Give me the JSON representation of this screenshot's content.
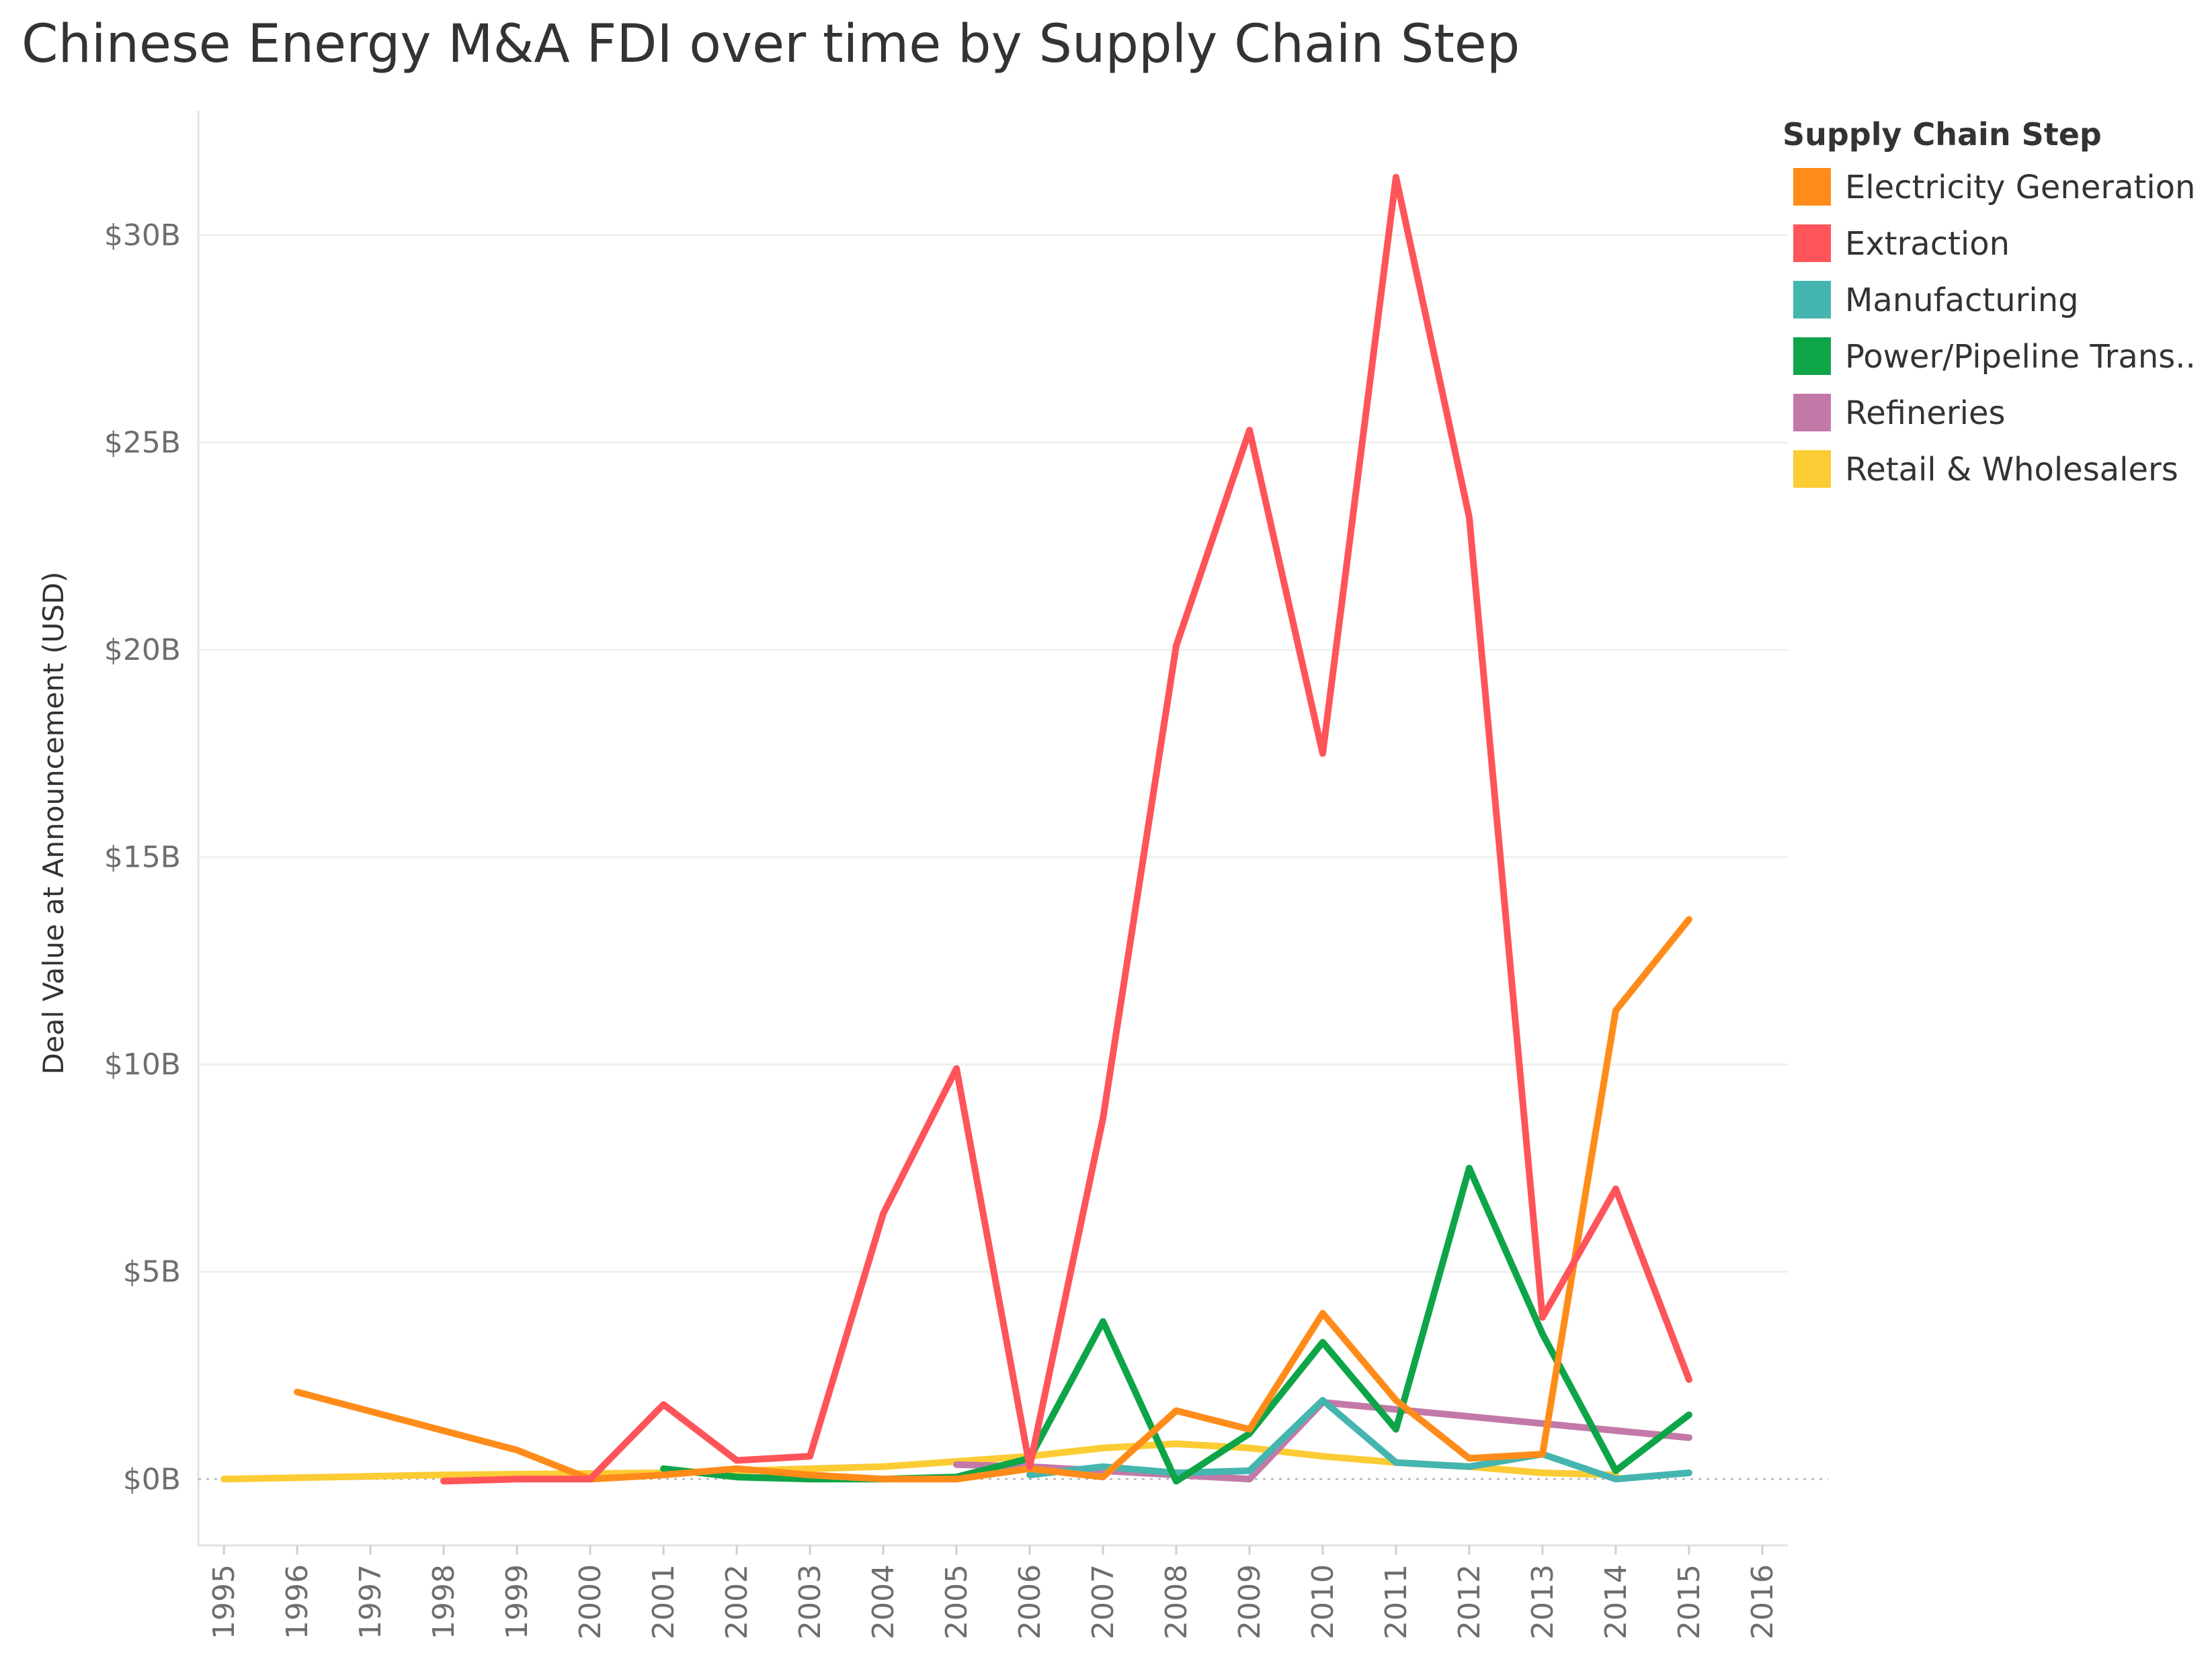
{
  "chart_data": {
    "type": "line",
    "title": "Chinese Energy M&A FDI over time by Supply Chain Step",
    "xlabel": "",
    "ylabel": "Deal Value at Announcement (USD)",
    "x": [
      1995,
      1996,
      1997,
      1998,
      1999,
      2000,
      2001,
      2002,
      2003,
      2004,
      2005,
      2006,
      2007,
      2008,
      2009,
      2010,
      2011,
      2012,
      2013,
      2014,
      2015,
      2016
    ],
    "x_tick_labels": [
      "1995",
      "1996",
      "1997",
      "1998",
      "1999",
      "2000",
      "2001",
      "2002",
      "2003",
      "2004",
      "2005",
      "2006",
      "2007",
      "2008",
      "2009",
      "2010",
      "2011",
      "2012",
      "2013",
      "2014",
      "2015",
      "2016"
    ],
    "ylim": [
      -1.6,
      33
    ],
    "y_ticks": [
      0,
      5,
      10,
      15,
      20,
      25,
      30
    ],
    "y_tick_labels": [
      "$0B",
      "$5B",
      "$10B",
      "$15B",
      "$20B",
      "$25B",
      "$30B"
    ],
    "grid": true,
    "legend": {
      "title": "Supply Chain Step",
      "position": "top-right"
    },
    "series": [
      {
        "name": "Electricity Generation",
        "color": "#ff8c1a",
        "points": [
          [
            1996,
            2.1
          ],
          [
            1999,
            0.7
          ],
          [
            2000,
            0.0
          ],
          [
            2001,
            0.1
          ],
          [
            2002,
            0.25
          ],
          [
            2003,
            0.1
          ],
          [
            2004,
            0.0
          ],
          [
            2005,
            0.0
          ],
          [
            2006,
            0.25
          ],
          [
            2007,
            0.05
          ],
          [
            2008,
            1.65
          ],
          [
            2009,
            1.2
          ],
          [
            2010,
            4.0
          ],
          [
            2011,
            1.9
          ],
          [
            2012,
            0.5
          ],
          [
            2013,
            0.6
          ],
          [
            2014,
            11.3
          ],
          [
            2015,
            13.5
          ]
        ]
      },
      {
        "name": "Extraction",
        "color": "#ff5459",
        "points": [
          [
            1998,
            -0.05
          ],
          [
            1999,
            0.0
          ],
          [
            2000,
            0.0
          ],
          [
            2001,
            1.8
          ],
          [
            2002,
            0.45
          ],
          [
            2003,
            0.55
          ],
          [
            2004,
            6.4
          ],
          [
            2005,
            9.9
          ],
          [
            2006,
            0.3
          ],
          [
            2007,
            8.7
          ],
          [
            2008,
            20.1
          ],
          [
            2009,
            25.3
          ],
          [
            2010,
            17.5
          ],
          [
            2011,
            31.4
          ],
          [
            2012,
            23.2
          ],
          [
            2013,
            3.9
          ],
          [
            2014,
            7.0
          ],
          [
            2015,
            2.4
          ]
        ]
      },
      {
        "name": "Manufacturing",
        "color": "#45b5b0",
        "points": [
          [
            2006,
            0.1
          ],
          [
            2007,
            0.3
          ],
          [
            2008,
            0.15
          ],
          [
            2009,
            0.2
          ],
          [
            2010,
            1.9
          ],
          [
            2011,
            0.4
          ],
          [
            2012,
            0.3
          ],
          [
            2013,
            0.6
          ],
          [
            2014,
            0.0
          ],
          [
            2015,
            0.15
          ]
        ]
      },
      {
        "name": "Power/Pipeline Trans..",
        "color": "#0ea548",
        "points": [
          [
            2001,
            0.25
          ],
          [
            2002,
            0.05
          ],
          [
            2003,
            0.0
          ],
          [
            2004,
            0.0
          ],
          [
            2005,
            0.05
          ],
          [
            2006,
            0.5
          ],
          [
            2007,
            3.8
          ],
          [
            2008,
            -0.05
          ],
          [
            2009,
            1.1
          ],
          [
            2010,
            3.3
          ],
          [
            2011,
            1.2
          ],
          [
            2012,
            7.5
          ],
          [
            2013,
            3.5
          ],
          [
            2014,
            0.2
          ],
          [
            2015,
            1.55
          ]
        ]
      },
      {
        "name": "Refineries",
        "color": "#c379a8",
        "points": [
          [
            2005,
            0.35
          ],
          [
            2006,
            0.3
          ],
          [
            2007,
            0.2
          ],
          [
            2008,
            0.1
          ],
          [
            2009,
            0.0
          ],
          [
            2010,
            1.85
          ],
          [
            2015,
            1.0
          ]
        ]
      },
      {
        "name": "Retail & Wholesalers",
        "color": "#fccc35",
        "points": [
          [
            1995,
            0.0
          ],
          [
            1998,
            0.1
          ],
          [
            2001,
            0.15
          ],
          [
            2004,
            0.3
          ],
          [
            2006,
            0.55
          ],
          [
            2007,
            0.75
          ],
          [
            2008,
            0.85
          ],
          [
            2009,
            0.75
          ],
          [
            2010,
            0.55
          ],
          [
            2011,
            0.4
          ],
          [
            2012,
            0.3
          ],
          [
            2013,
            0.15
          ],
          [
            2014,
            0.1
          ]
        ]
      }
    ]
  }
}
